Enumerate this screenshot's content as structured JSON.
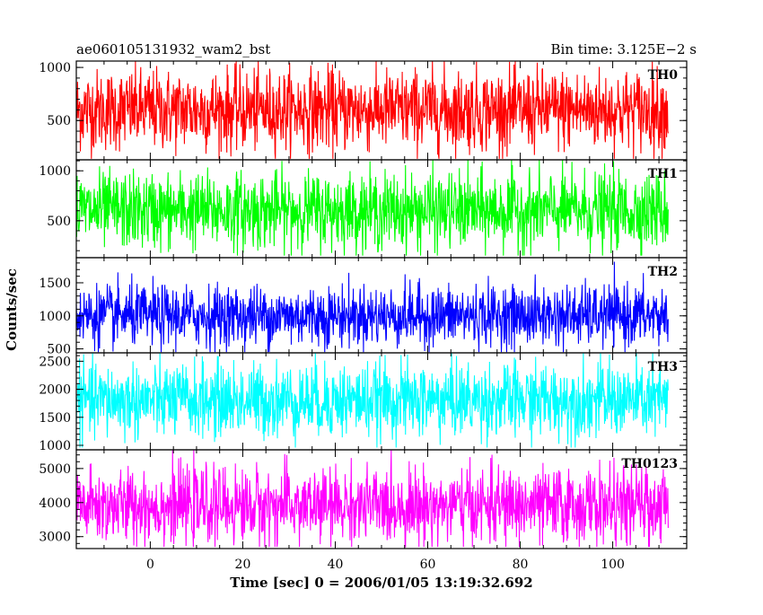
{
  "chart_data": {
    "type": "line",
    "title": "ae060105131932_wam2_bst",
    "bin_time_label": "Bin time: 3.125E−2 s",
    "xlabel": "Time [sec] 0 = 2006/01/05 13:19:32.692",
    "ylabel": "Counts/sec",
    "xlim": [
      -16,
      116
    ],
    "x_ticks": [
      0,
      20,
      40,
      60,
      80,
      100
    ],
    "x_tick_labels": [
      "0",
      "20",
      "40",
      "60",
      "80",
      "100"
    ],
    "x_data_range": [
      -16,
      112
    ],
    "panels": [
      {
        "name": "TH0",
        "color": "#ff0000",
        "ylim": [
          130,
          1060
        ],
        "y_ticks": [
          500,
          1000
        ],
        "y_tick_labels": [
          "500",
          "1000"
        ],
        "mean": 600,
        "spread": 190,
        "min": 140,
        "max": 1060
      },
      {
        "name": "TH1",
        "color": "#00ff00",
        "ylim": [
          130,
          1110
        ],
        "y_ticks": [
          500,
          1000
        ],
        "y_tick_labels": [
          "500",
          "1000"
        ],
        "mean": 600,
        "spread": 190,
        "min": 150,
        "max": 1110
      },
      {
        "name": "TH2",
        "color": "#0000ff",
        "ylim": [
          440,
          1880
        ],
        "y_ticks": [
          500,
          1000,
          1500
        ],
        "y_tick_labels": [
          "500",
          "1000",
          "1500"
        ],
        "mean": 1000,
        "spread": 230,
        "min": 450,
        "max": 1880
      },
      {
        "name": "TH3",
        "color": "#00ffff",
        "ylim": [
          920,
          2650
        ],
        "y_ticks": [
          1000,
          1500,
          2000,
          2500
        ],
        "y_tick_labels": [
          "1000",
          "1500",
          "2000",
          "2500"
        ],
        "mean": 1800,
        "spread": 330,
        "min": 960,
        "max": 2650
      },
      {
        "name": "TH0123",
        "color": "#ff00ff",
        "ylim": [
          2650,
          5550
        ],
        "y_ticks": [
          3000,
          4000,
          5000
        ],
        "y_tick_labels": [
          "3000",
          "4000",
          "5000"
        ],
        "mean": 3900,
        "spread": 550,
        "min": 2700,
        "max": 5550
      }
    ]
  }
}
